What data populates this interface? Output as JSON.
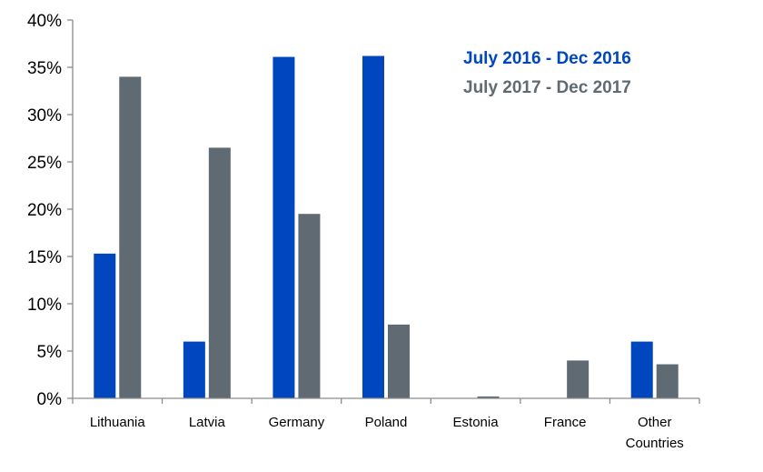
{
  "chart_data": {
    "type": "bar",
    "title": "",
    "xlabel": "",
    "ylabel": "",
    "ylim": [
      0,
      40
    ],
    "yticks": [
      0,
      5,
      10,
      15,
      20,
      25,
      30,
      35,
      40
    ],
    "ytick_labels": [
      "0%",
      "5%",
      "10%",
      "15%",
      "20%",
      "25%",
      "30%",
      "35%",
      "40%"
    ],
    "grid": false,
    "legend_position": "top-right",
    "categories": [
      [
        "Lithuania"
      ],
      [
        "Latvia"
      ],
      [
        "Germany"
      ],
      [
        "Poland"
      ],
      [
        "Estonia"
      ],
      [
        "France"
      ],
      [
        "Other",
        "Countries"
      ]
    ],
    "series": [
      {
        "name": "July 2016 - Dec 2016",
        "color": "#0046BE",
        "values": [
          15.3,
          6.0,
          36.1,
          36.2,
          0.0,
          0.0,
          6.0
        ]
      },
      {
        "name": "July 2017 - Dec 2017",
        "color": "#5F6A72",
        "values": [
          34.0,
          26.5,
          19.5,
          7.8,
          0.2,
          4.0,
          3.6
        ]
      }
    ]
  }
}
